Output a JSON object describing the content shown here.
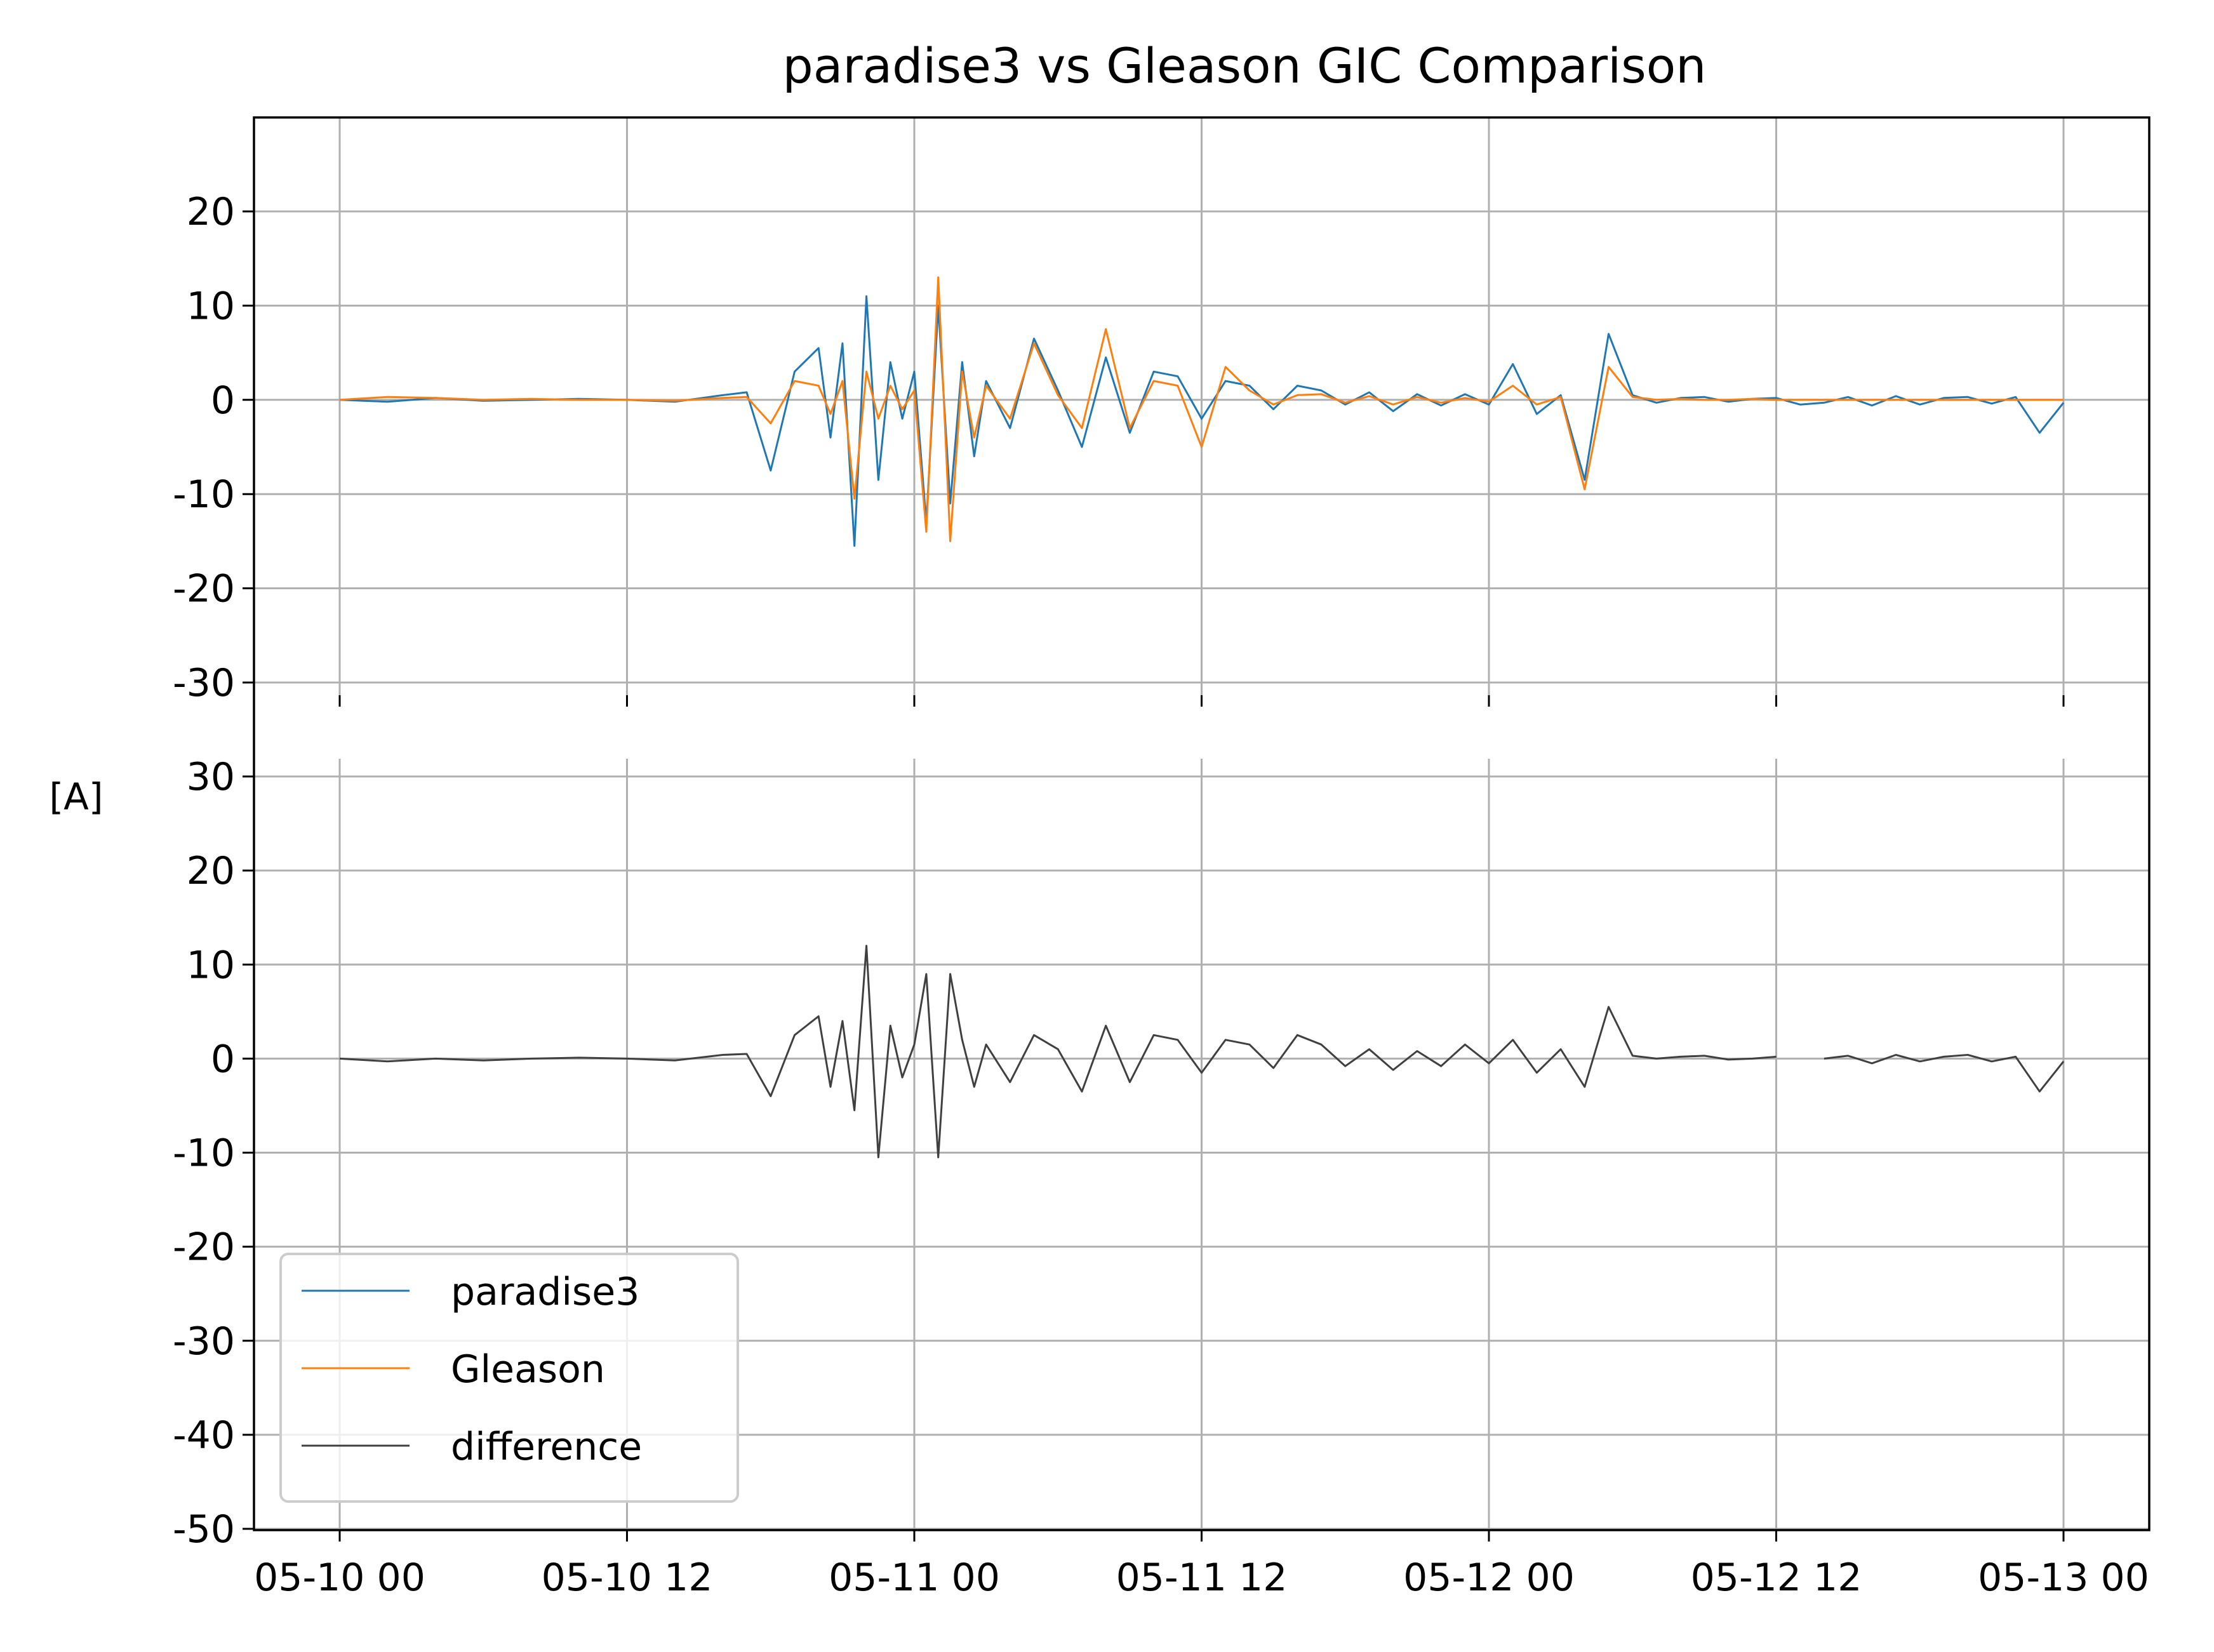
{
  "chart_data": {
    "type": "line",
    "title": "paradise3 vs Gleason GIC Comparison",
    "ylabel": "[A]",
    "xlabel": "",
    "grid": true,
    "legend_placement": "lower-left",
    "x_ticks": [
      "05-10 00",
      "05-10 12",
      "05-11 00",
      "05-11 12",
      "05-12 00",
      "05-12 12",
      "05-13 00"
    ],
    "x_range": [
      "05-10 00",
      "05-13 00"
    ],
    "panels": [
      {
        "id": "top",
        "ylim": [
          -30,
          30
        ],
        "y_ticks": [
          "20",
          "10",
          "0",
          "-10",
          "-20",
          "-30"
        ],
        "series": [
          {
            "name": "paradise3",
            "color": "#1f77b4",
            "x_hours": [
              0,
              2,
              4,
              6,
              8,
              10,
              12,
              14,
              16,
              17,
              18,
              19,
              20,
              20.5,
              21,
              21.5,
              22,
              22.5,
              23,
              23.5,
              24,
              24.5,
              25,
              25.5,
              26,
              26.5,
              27,
              28,
              29,
              30,
              31,
              32,
              33,
              34,
              35,
              36,
              37,
              38,
              39,
              40,
              41,
              42,
              43,
              44,
              45,
              46,
              47,
              48,
              49,
              50,
              51,
              52,
              53,
              54,
              55,
              56,
              57,
              58,
              59,
              60,
              61,
              62,
              63,
              64,
              65,
              66,
              67,
              68,
              69,
              70,
              71,
              72
            ],
            "values": [
              0,
              -0.2,
              0.2,
              -0.1,
              0,
              0.1,
              0,
              -0.2,
              0.5,
              0.8,
              -7.5,
              3,
              5.5,
              -4,
              6,
              -15.5,
              11,
              -8.5,
              4,
              -2,
              3,
              -13,
              10,
              -11,
              4,
              -6,
              2,
              -3,
              6.5,
              1,
              -5,
              4.5,
              -3.5,
              3,
              2.5,
              -2,
              2,
              1.5,
              -1,
              1.5,
              1,
              -0.5,
              0.8,
              -1.2,
              0.6,
              -0.6,
              0.6,
              -0.5,
              3.8,
              -1.5,
              0.5,
              -8.5,
              7,
              0.5,
              -0.3,
              0.2,
              0.3,
              -0.2,
              0.1,
              0.2,
              -0.5,
              -0.3,
              0.3,
              -0.6,
              0.4,
              -0.5,
              0.2,
              0.3,
              -0.4,
              0.3,
              -3.5,
              -0.3
            ]
          },
          {
            "name": "Gleason",
            "color": "#ff7f0e",
            "x_hours": [
              0,
              2,
              4,
              6,
              8,
              10,
              12,
              14,
              16,
              17,
              18,
              19,
              20,
              20.5,
              21,
              21.5,
              22,
              22.5,
              23,
              23.5,
              24,
              24.5,
              25,
              25.5,
              26,
              26.5,
              27,
              28,
              29,
              30,
              31,
              32,
              33,
              34,
              35,
              36,
              37,
              38,
              39,
              40,
              41,
              42,
              43,
              44,
              45,
              46,
              47,
              48,
              49,
              50,
              51,
              52,
              53,
              54,
              55,
              56,
              57,
              58,
              59,
              60,
              61,
              62,
              63,
              64,
              65,
              66,
              67,
              68,
              69,
              70,
              71,
              72
            ],
            "values": [
              0,
              0.3,
              0.2,
              0,
              0.1,
              0,
              0,
              -0.1,
              0.2,
              0.3,
              -2.5,
              2,
              1.5,
              -1.5,
              2,
              -10.5,
              3,
              -2,
              1.5,
              -1,
              1,
              -14,
              13,
              -15,
              3,
              -4,
              1.5,
              -2,
              6,
              0.5,
              -3,
              7.5,
              -3,
              2,
              1.5,
              -5,
              3.5,
              1,
              -0.5,
              0.5,
              0.6,
              -0.3,
              0.4,
              -0.5,
              0.3,
              -0.3,
              0.2,
              -0.2,
              1.5,
              -0.5,
              0.3,
              -9.5,
              3.5,
              0.3,
              0,
              0.1,
              0,
              0,
              0.1,
              0,
              0,
              0,
              0,
              0,
              0,
              0,
              0,
              0,
              0,
              0,
              0,
              0
            ]
          }
        ]
      },
      {
        "id": "bottom",
        "ylim": [
          -50,
          30
        ],
        "y_ticks": [
          "30",
          "20",
          "10",
          "0",
          "-10",
          "-20",
          "-30",
          "-40",
          "-50"
        ],
        "series": [
          {
            "name": "difference",
            "color": "#404040",
            "x_hours": [
              0,
              2,
              4,
              6,
              8,
              10,
              12,
              14,
              16,
              17,
              18,
              19,
              20,
              20.5,
              21,
              21.5,
              22,
              22.5,
              23,
              23.5,
              24,
              24.5,
              25,
              25.5,
              26,
              26.5,
              27,
              28,
              29,
              30,
              31,
              32,
              33,
              34,
              35,
              36,
              37,
              38,
              39,
              40,
              41,
              42,
              43,
              44,
              45,
              46,
              47,
              48,
              49,
              50,
              51,
              52,
              53,
              54,
              55,
              56,
              57,
              58,
              59,
              60,
              61,
              62,
              63,
              64,
              65,
              66,
              67,
              68,
              69,
              70,
              71,
              72
            ],
            "values": [
              0,
              -0.3,
              0,
              -0.2,
              0,
              0.1,
              0,
              -0.2,
              0.4,
              0.5,
              -4,
              2.5,
              4.5,
              -3,
              4,
              -5.5,
              12,
              -10.5,
              3.5,
              -2,
              1.5,
              9,
              -10.5,
              9,
              2,
              -3,
              1.5,
              -2.5,
              2.5,
              1,
              -3.5,
              3.5,
              -2.5,
              2.5,
              2,
              -1.5,
              2,
              1.5,
              -1,
              2.5,
              1.5,
              -0.8,
              1,
              -1.2,
              0.8,
              -0.8,
              1.5,
              -0.5,
              2,
              -1.5,
              1,
              -3,
              5.5,
              0.3,
              0,
              0.2,
              0.3,
              -0.1,
              0,
              0.2,
              null,
              0,
              0.3,
              -0.5,
              0.4,
              -0.3,
              0.2,
              0.4,
              -0.3,
              0.2,
              -3.5,
              -0.3
            ]
          }
        ]
      }
    ]
  }
}
